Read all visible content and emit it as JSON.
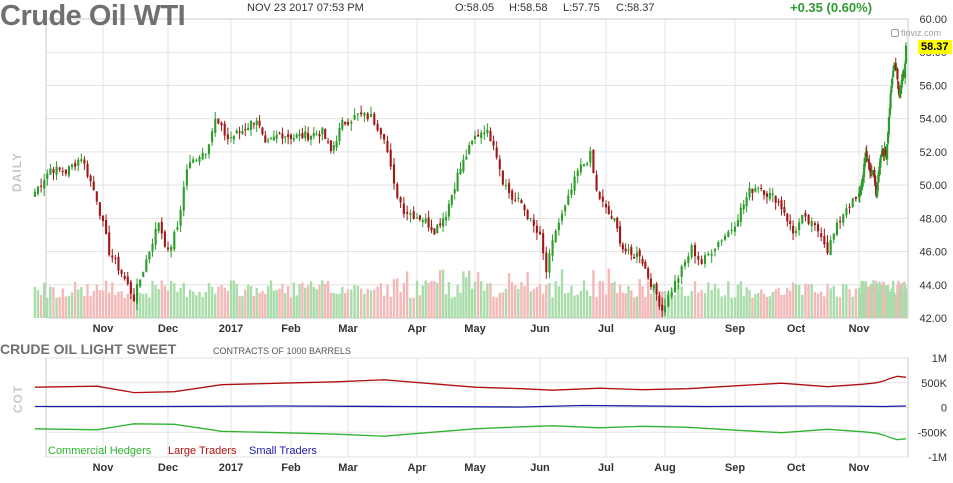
{
  "header": {
    "title": "Crude Oil WTI",
    "datetime": "NOV 23 2017 07:53 PM",
    "open": "O:58.05",
    "high": "H:58.58",
    "low": "L:57.75",
    "close": "C:58.37",
    "change": "+0.35 (0.60%)",
    "watermark": "finviz.com",
    "last_price": "58.37",
    "timeframe": "DAILY"
  },
  "cot": {
    "title": "CRUDE OIL LIGHT SWEET",
    "subtitle": "CONTRACTS OF 1000 BARRELS",
    "label": "COT",
    "legend": [
      {
        "name": "Commercial Hedgers",
        "color": "#2db32d"
      },
      {
        "name": "Large Traders",
        "color": "#b01010"
      },
      {
        "name": "Small Traders",
        "color": "#1a1aa8"
      }
    ]
  },
  "colors": {
    "up": "#2a9d2a",
    "down": "#a01818",
    "vol_up": "#a8dca8",
    "vol_down": "#f4b8b8",
    "grid": "#e3e3e3"
  },
  "chart_data": [
    {
      "type": "candlestick",
      "title": "Crude Oil WTI",
      "ylim": [
        42,
        60
      ],
      "y_ticks": [
        "42.00",
        "44.00",
        "46.00",
        "48.00",
        "50.00",
        "52.00",
        "54.00",
        "56.00",
        "58.00",
        "60.00"
      ],
      "x_labels": [
        "Nov",
        "Dec",
        "2017",
        "Feb",
        "Mar",
        "Apr",
        "May",
        "Jun",
        "Jul",
        "Aug",
        "Sep",
        "Oct",
        "Nov"
      ],
      "close_anchors": [
        [
          0,
          49.6
        ],
        [
          5,
          51.0
        ],
        [
          10,
          50.8
        ],
        [
          15,
          51.7
        ],
        [
          20,
          49.2
        ],
        [
          24,
          46.0
        ],
        [
          28,
          44.7
        ],
        [
          32,
          43.2
        ],
        [
          36,
          45.5
        ],
        [
          40,
          47.8
        ],
        [
          43,
          45.9
        ],
        [
          46,
          47.5
        ],
        [
          49,
          51.0
        ],
        [
          52,
          51.7
        ],
        [
          55,
          52.1
        ],
        [
          58,
          53.9
        ],
        [
          62,
          52.8
        ],
        [
          67,
          53.3
        ],
        [
          72,
          54.0
        ],
        [
          75,
          52.3
        ],
        [
          80,
          53.1
        ],
        [
          85,
          52.9
        ],
        [
          90,
          53.0
        ],
        [
          95,
          53.2
        ],
        [
          98,
          52.0
        ],
        [
          102,
          53.7
        ],
        [
          107,
          54.2
        ],
        [
          111,
          54.1
        ],
        [
          115,
          53.0
        ],
        [
          118,
          49.9
        ],
        [
          121,
          48.5
        ],
        [
          124,
          48.2
        ],
        [
          127,
          48.0
        ],
        [
          131,
          47.3
        ],
        [
          135,
          48.3
        ],
        [
          139,
          50.6
        ],
        [
          142,
          51.8
        ],
        [
          145,
          52.9
        ],
        [
          148,
          53.4
        ],
        [
          151,
          52.6
        ],
        [
          154,
          50.3
        ],
        [
          157,
          49.2
        ],
        [
          160,
          48.9
        ],
        [
          163,
          47.8
        ],
        [
          166,
          46.8
        ],
        [
          168,
          44.8
        ],
        [
          171,
          47.3
        ],
        [
          174,
          48.6
        ],
        [
          178,
          50.8
        ],
        [
          182,
          51.8
        ],
        [
          184,
          49.6
        ],
        [
          187,
          48.5
        ],
        [
          190,
          47.8
        ],
        [
          193,
          46.2
        ],
        [
          196,
          45.7
        ],
        [
          199,
          45.9
        ],
        [
          202,
          44.5
        ],
        [
          205,
          43.4
        ],
        [
          207,
          42.5
        ],
        [
          210,
          43.7
        ],
        [
          213,
          44.9
        ],
        [
          216,
          46.2
        ],
        [
          219,
          45.3
        ],
        [
          222,
          46.1
        ],
        [
          225,
          46.8
        ],
        [
          228,
          47.4
        ],
        [
          231,
          48.5
        ],
        [
          234,
          49.6
        ],
        [
          237,
          50.0
        ],
        [
          240,
          49.5
        ],
        [
          243,
          49.2
        ],
        [
          246,
          48.4
        ],
        [
          249,
          47.1
        ],
        [
          252,
          48.0
        ],
        [
          255,
          47.6
        ],
        [
          258,
          47.1
        ],
        [
          260,
          46.1
        ],
        [
          263,
          47.5
        ],
        [
          266,
          48.7
        ],
        [
          269,
          49.1
        ],
        [
          272,
          49.9
        ],
        [
          275,
          50.5
        ],
        [
          278,
          52.0
        ],
        [
          281,
          51.4
        ],
        [
          284,
          50.6
        ],
        [
          287,
          50.8
        ],
        [
          290,
          49.6
        ],
        [
          293,
          50.6
        ],
        [
          296,
          51.8
        ],
        [
          299,
          52.1
        ],
        [
          302,
          51.8
        ],
        [
          305,
          54.2
        ],
        [
          308,
          55.8
        ],
        [
          311,
          57.4
        ],
        [
          314,
          57.0
        ],
        [
          317,
          55.4
        ],
        [
          320,
          56.3
        ],
        [
          323,
          56.8
        ],
        [
          325,
          58.4
        ]
      ]
    },
    {
      "type": "line",
      "title": "CRUDE OIL LIGHT SWEET",
      "ylim": [
        -1000,
        1000
      ],
      "y_ticks": [
        "1M",
        "500K",
        "0",
        "-500K",
        "-1M"
      ],
      "y_values": [
        1000,
        500,
        0,
        -500,
        -1000
      ],
      "x_labels": [
        "Nov",
        "Dec",
        "2017",
        "Feb",
        "Mar",
        "Apr",
        "May",
        "Jun",
        "Jul",
        "Aug",
        "Sep",
        "Oct",
        "Nov"
      ],
      "series": [
        {
          "name": "Large Traders",
          "color": "#b01010",
          "x": [
            0,
            20,
            32,
            45,
            60,
            80,
            100,
            115,
            130,
            145,
            160,
            170,
            185,
            200,
            215,
            230,
            245,
            260,
            275,
            290,
            300,
            305,
            315,
            325
          ],
          "y": [
            410,
            430,
            300,
            320,
            460,
            490,
            520,
            560,
            480,
            410,
            380,
            350,
            390,
            360,
            380,
            440,
            490,
            420,
            470,
            500,
            540,
            580,
            630,
            610
          ]
        },
        {
          "name": "Small Traders",
          "color": "#1a1aa8",
          "x": [
            0,
            40,
            80,
            120,
            160,
            180,
            220,
            260,
            300,
            325
          ],
          "y": [
            20,
            20,
            30,
            20,
            10,
            40,
            20,
            30,
            20,
            30
          ]
        },
        {
          "name": "Commercial Hedgers",
          "color": "#2db32d",
          "x": [
            0,
            20,
            32,
            45,
            60,
            80,
            100,
            115,
            130,
            145,
            160,
            170,
            185,
            200,
            215,
            230,
            245,
            260,
            275,
            290,
            300,
            305,
            315,
            325
          ],
          "y": [
            -430,
            -450,
            -330,
            -340,
            -480,
            -510,
            -540,
            -580,
            -500,
            -430,
            -390,
            -370,
            -410,
            -380,
            -400,
            -460,
            -510,
            -440,
            -490,
            -520,
            -560,
            -600,
            -650,
            -630
          ]
        }
      ]
    }
  ]
}
